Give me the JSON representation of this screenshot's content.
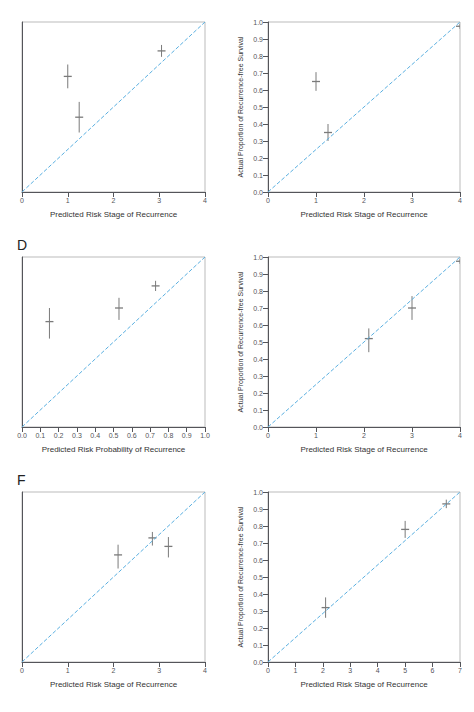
{
  "chart_data": [
    {
      "type": "scatter",
      "xlabel": "Predicted Risk Stage of Recurrence",
      "xlim": [
        0,
        4
      ],
      "ylim": [
        0.0,
        1.0
      ],
      "xticks": [
        0,
        1,
        2,
        3,
        4
      ],
      "tick_labels": "x",
      "grid": false,
      "series": [
        {
          "type": "line",
          "line_style": "dashed",
          "color": "#5aafe0",
          "x": [
            0,
            4
          ],
          "values": [
            0,
            1
          ]
        },
        {
          "type": "errorbar",
          "marker": "hline",
          "color": "#7a7a7a",
          "x": [
            1.0,
            1.25,
            3.05
          ],
          "values": [
            0.68,
            0.44,
            0.83
          ],
          "yerr_low": [
            0.07,
            0.09,
            0.035
          ],
          "yerr_high": [
            0.07,
            0.09,
            0.035
          ]
        }
      ]
    },
    {
      "type": "scatter",
      "xlabel": "Predicted Risk Stage of Recurrence",
      "ylabel": "Actual Proportion of Recurrence-free Survival",
      "xlim": [
        0,
        4
      ],
      "ylim": [
        0.0,
        1.0
      ],
      "xticks": [
        0,
        1,
        2,
        3,
        4
      ],
      "yticks": [
        {
          "value": 0.0,
          "label": "0.0"
        },
        0.1,
        0.2,
        0.3,
        0.4,
        0.5,
        0.6,
        0.7,
        0.8,
        0.9,
        {
          "value": 1.0,
          "label": "1.0"
        }
      ],
      "grid": false,
      "series": [
        {
          "type": "line",
          "line_style": "dashed",
          "color": "#5aafe0",
          "x": [
            0,
            4
          ],
          "values": [
            0,
            1
          ]
        },
        {
          "type": "errorbar",
          "marker": "hline",
          "color": "#7a7a7a",
          "x": [
            1.0,
            1.25,
            4.0
          ],
          "values": [
            0.65,
            0.35,
            0.975
          ],
          "yerr_low": [
            0.055,
            0.05,
            0.015
          ],
          "yerr_high": [
            0.055,
            0.05,
            0.015
          ]
        }
      ]
    },
    {
      "type": "scatter",
      "annotation": "D",
      "xlabel": "Predicted Risk Probability of Recurrence",
      "xlim": [
        0.0,
        1.0
      ],
      "ylim": [
        0.0,
        1.0
      ],
      "xticks": [
        {
          "value": 0.0,
          "label": "0.0"
        },
        0.1,
        0.2,
        0.3,
        0.4,
        0.5,
        0.6,
        0.7,
        0.8,
        0.9,
        {
          "value": 1.0,
          "label": "1.0"
        }
      ],
      "tick_labels": "x",
      "grid": false,
      "series": [
        {
          "type": "line",
          "line_style": "dashed",
          "color": "#5aafe0",
          "x": [
            0,
            1
          ],
          "values": [
            0,
            1
          ]
        },
        {
          "type": "errorbar",
          "marker": "hline",
          "color": "#7a7a7a",
          "x": [
            0.15,
            0.53,
            0.73
          ],
          "values": [
            0.62,
            0.7,
            0.83
          ],
          "yerr_low": [
            0.1,
            0.07,
            0.03
          ],
          "yerr_high": [
            0.08,
            0.06,
            0.03
          ]
        }
      ]
    },
    {
      "type": "scatter",
      "xlabel": "Predicted Risk Stage of Recurrence",
      "ylabel": "Actual Proportion of Recurrence-free Survival",
      "xlim": [
        0,
        4
      ],
      "ylim": [
        0.0,
        1.0
      ],
      "xticks": [
        0,
        1,
        2,
        3,
        4
      ],
      "yticks": [
        {
          "value": 0.0,
          "label": "0.0"
        },
        0.1,
        0.2,
        0.3,
        0.4,
        0.5,
        0.6,
        0.7,
        0.8,
        0.9,
        {
          "value": 1.0,
          "label": "1.0"
        }
      ],
      "grid": false,
      "series": [
        {
          "type": "line",
          "line_style": "dashed",
          "color": "#5aafe0",
          "x": [
            0,
            4
          ],
          "values": [
            0,
            1
          ]
        },
        {
          "type": "errorbar",
          "marker": "hline",
          "color": "#7a7a7a",
          "x": [
            2.1,
            3.0,
            4.0
          ],
          "values": [
            0.52,
            0.7,
            0.975
          ],
          "yerr_low": [
            0.08,
            0.07,
            0.015
          ],
          "yerr_high": [
            0.06,
            0.07,
            0.015
          ]
        }
      ]
    },
    {
      "type": "scatter",
      "annotation": "F",
      "xlabel": "Predicted Risk Stage of Recurrence",
      "xlim": [
        0,
        4
      ],
      "ylim": [
        0.0,
        1.0
      ],
      "xticks": [
        0,
        1,
        2,
        3,
        4
      ],
      "tick_labels": "x",
      "grid": false,
      "series": [
        {
          "type": "line",
          "line_style": "dashed",
          "color": "#5aafe0",
          "x": [
            0,
            4
          ],
          "values": [
            0,
            1
          ]
        },
        {
          "type": "errorbar",
          "marker": "hline",
          "color": "#7a7a7a",
          "x": [
            2.1,
            2.85,
            3.2
          ],
          "values": [
            0.63,
            0.73,
            0.68
          ],
          "yerr_low": [
            0.08,
            0.045,
            0.065
          ],
          "yerr_high": [
            0.06,
            0.035,
            0.055
          ]
        }
      ]
    },
    {
      "type": "scatter",
      "xlabel": "Predicted Risk Stage of Recurrence",
      "ylabel": "Actual Proportion of Recurrence-free Survival",
      "xlim": [
        0,
        7
      ],
      "ylim": [
        0.0,
        1.0
      ],
      "xticks": [
        0,
        1,
        2,
        3,
        4,
        5,
        6,
        7
      ],
      "yticks": [
        {
          "value": 0.0,
          "label": "0.0"
        },
        0.1,
        0.2,
        0.3,
        0.4,
        0.5,
        0.6,
        0.7,
        0.8,
        0.9,
        {
          "value": 1.0,
          "label": "1.0"
        }
      ],
      "grid": false,
      "series": [
        {
          "type": "line",
          "line_style": "dashed",
          "color": "#5aafe0",
          "x": [
            0,
            7
          ],
          "values": [
            0,
            1
          ]
        },
        {
          "type": "errorbar",
          "marker": "hline",
          "color": "#7a7a7a",
          "x": [
            2.1,
            5.0,
            6.5
          ],
          "values": [
            0.32,
            0.78,
            0.93
          ],
          "yerr_low": [
            0.06,
            0.05,
            0.025
          ],
          "yerr_high": [
            0.06,
            0.05,
            0.025
          ]
        }
      ]
    }
  ]
}
